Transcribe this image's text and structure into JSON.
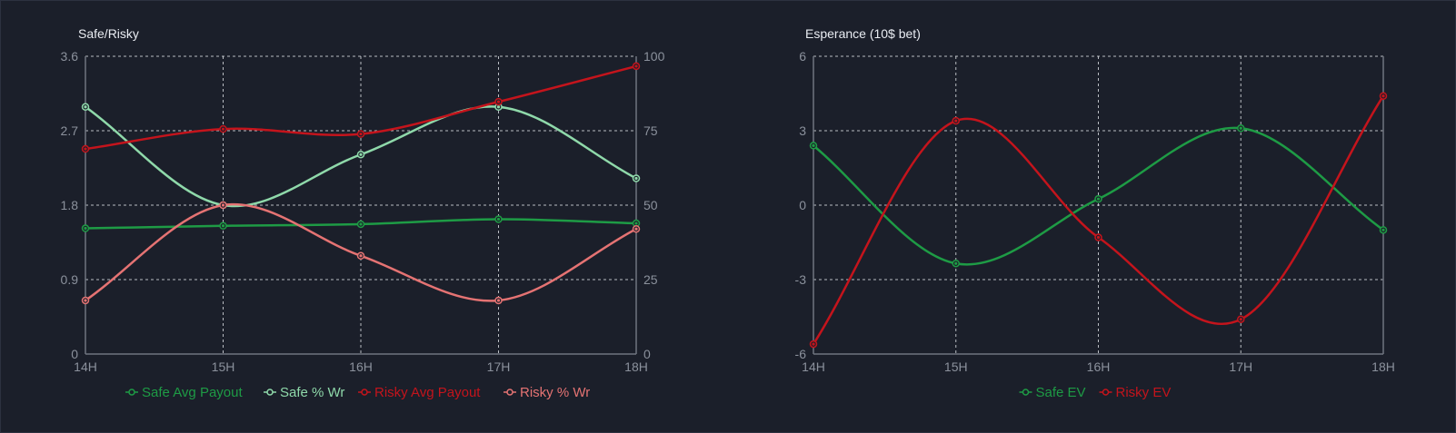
{
  "chart_data": [
    {
      "type": "line",
      "title": "Safe/Risky",
      "categories": [
        "14H",
        "15H",
        "16H",
        "17H",
        "18H"
      ],
      "left_axis": {
        "ticks": [
          "0",
          "0.9",
          "1.8",
          "2.7",
          "3.6"
        ],
        "range": [
          0,
          3.6
        ]
      },
      "right_axis": {
        "ticks": [
          "0",
          "25",
          "50",
          "75",
          "100"
        ],
        "range": [
          0,
          100
        ]
      },
      "grid": true,
      "legend_position": "bottom",
      "series": [
        {
          "name": "Safe Avg Payout",
          "axis": "left",
          "color": "#1e9b45",
          "values": [
            1.52,
            1.55,
            1.57,
            1.63,
            1.58
          ]
        },
        {
          "name": "Safe % Wr",
          "axis": "right",
          "color": "#8fd9aa",
          "values": [
            83,
            50,
            67,
            83,
            59
          ]
        },
        {
          "name": "Risky Avg Payout",
          "axis": "left",
          "color": "#c4141c",
          "values": [
            2.48,
            2.72,
            2.66,
            3.05,
            3.48
          ]
        },
        {
          "name": "Risky % Wr",
          "axis": "right",
          "color": "#e57373",
          "values": [
            18,
            50,
            33,
            18,
            42
          ]
        }
      ]
    },
    {
      "type": "line",
      "title": "Esperance (10$ bet)",
      "categories": [
        "14H",
        "15H",
        "16H",
        "17H",
        "18H"
      ],
      "left_axis": {
        "ticks": [
          "-6",
          "-3",
          "0",
          "3",
          "6"
        ],
        "range": [
          -6,
          6
        ]
      },
      "grid": true,
      "legend_position": "bottom",
      "series": [
        {
          "name": "Safe EV",
          "axis": "left",
          "color": "#1e9b45",
          "values": [
            2.4,
            -2.35,
            0.25,
            3.1,
            -1.0
          ]
        },
        {
          "name": "Risky EV",
          "axis": "left",
          "color": "#c4141c",
          "values": [
            -5.6,
            3.4,
            -1.3,
            -4.6,
            4.4
          ]
        }
      ]
    }
  ]
}
